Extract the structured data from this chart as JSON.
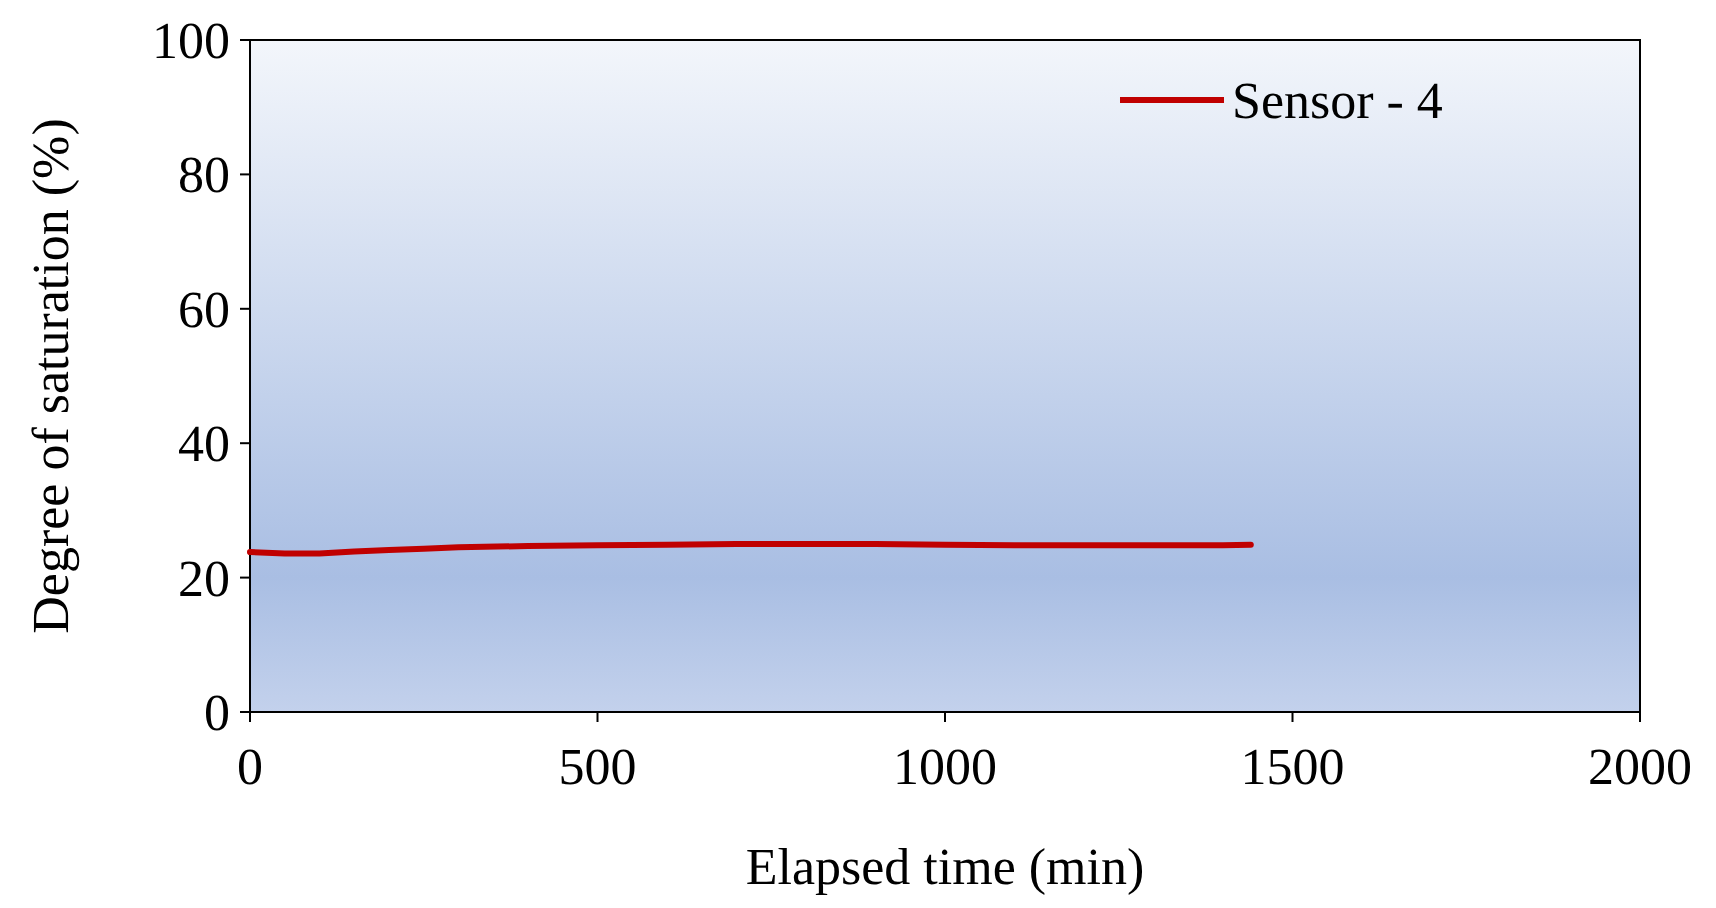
{
  "chart_data": {
    "type": "line",
    "xlabel": "Elapsed time (min)",
    "ylabel": "Degree of saturation (%)",
    "xlim": [
      0,
      2000
    ],
    "xticks": [
      0,
      500,
      1000,
      1500,
      2000
    ],
    "ylim": [
      0,
      100
    ],
    "yticks": [
      0,
      20,
      40,
      60,
      80,
      100
    ],
    "grid": false,
    "legend": "top right",
    "marker": "none",
    "line_style": "solid",
    "series": [
      {
        "name": "Sensor - 4",
        "color": "#c00000",
        "x": [
          0,
          50,
          100,
          150,
          200,
          250,
          300,
          400,
          500,
          600,
          700,
          800,
          900,
          1000,
          1100,
          1200,
          1300,
          1400,
          1440
        ],
        "values": [
          23.8,
          23.6,
          23.6,
          23.9,
          24.1,
          24.3,
          24.5,
          24.7,
          24.8,
          24.9,
          25,
          25,
          25,
          24.9,
          24.8,
          24.8,
          24.8,
          24.8,
          24.9
        ]
      }
    ]
  }
}
